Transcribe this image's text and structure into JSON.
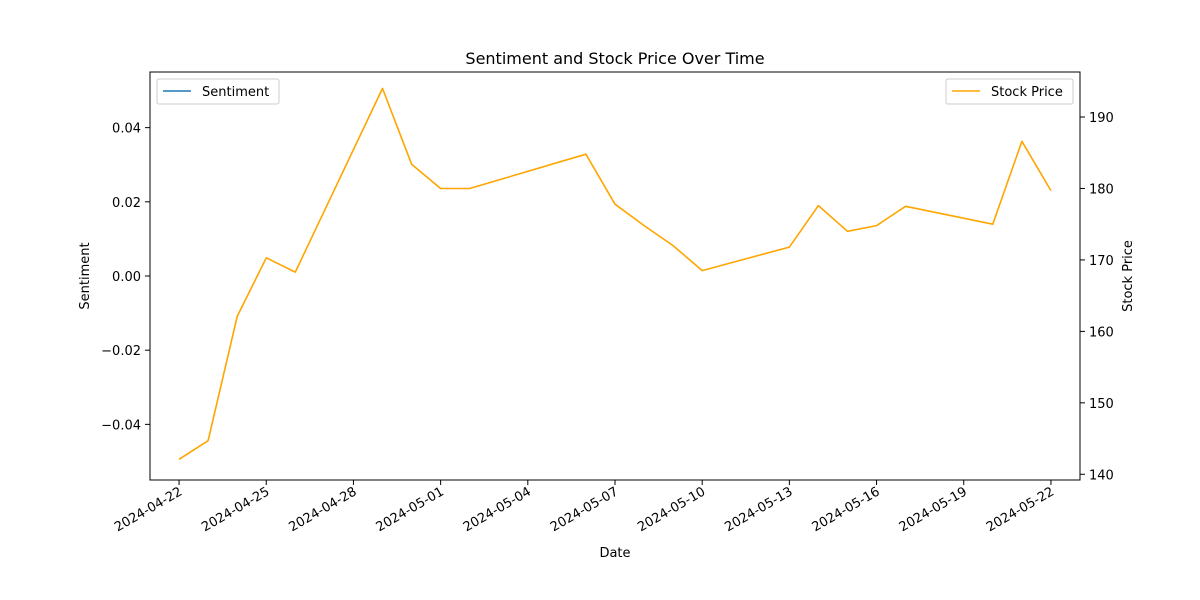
{
  "chart_data": {
    "type": "line",
    "title": "Sentiment and Stock Price Over Time",
    "xlabel": "Date",
    "ylabel_left": "Sentiment",
    "ylabel_right": "Stock Price",
    "xlim": [
      "2024-04-21",
      "2024-05-23"
    ],
    "ylim_left": [
      -0.055,
      0.055
    ],
    "ylim_right": [
      139.2,
      196.3
    ],
    "x_ticks": [
      "2024-04-22",
      "2024-04-25",
      "2024-04-28",
      "2024-05-01",
      "2024-05-04",
      "2024-05-07",
      "2024-05-10",
      "2024-05-13",
      "2024-05-16",
      "2024-05-19",
      "2024-05-22"
    ],
    "y_ticks_left": [
      -0.04,
      -0.02,
      0.0,
      0.02,
      0.04
    ],
    "y_tick_labels_left": [
      "−0.04",
      "−0.02",
      "0.00",
      "0.02",
      "0.04"
    ],
    "y_ticks_right": [
      140,
      150,
      160,
      170,
      180,
      190
    ],
    "y_tick_labels_right": [
      "140",
      "150",
      "160",
      "170",
      "180",
      "190"
    ],
    "grid": false,
    "legend_left": {
      "placement": "top-left",
      "entries": [
        "Sentiment"
      ]
    },
    "legend_right": {
      "placement": "top-right",
      "entries": [
        "Stock Price"
      ]
    },
    "series": [
      {
        "name": "Sentiment",
        "axis": "left",
        "color": "#1f77b4",
        "x": [],
        "values": []
      },
      {
        "name": "Stock Price",
        "axis": "right",
        "color": "#ffa500",
        "x": [
          "2024-04-22",
          "2024-04-23",
          "2024-04-24",
          "2024-04-25",
          "2024-04-26",
          "2024-04-29",
          "2024-04-30",
          "2024-05-01",
          "2024-05-02",
          "2024-05-06",
          "2024-05-07",
          "2024-05-08",
          "2024-05-09",
          "2024-05-10",
          "2024-05-13",
          "2024-05-14",
          "2024-05-15",
          "2024-05-16",
          "2024-05-17",
          "2024-05-20",
          "2024-05-21",
          "2024-05-22"
        ],
        "values": [
          142.1,
          144.7,
          162.1,
          170.3,
          168.3,
          194.0,
          183.4,
          180.0,
          180.0,
          184.8,
          177.8,
          174.8,
          172.0,
          168.5,
          171.8,
          177.6,
          174.0,
          174.8,
          177.5,
          175.0,
          186.6,
          179.7
        ]
      }
    ]
  }
}
